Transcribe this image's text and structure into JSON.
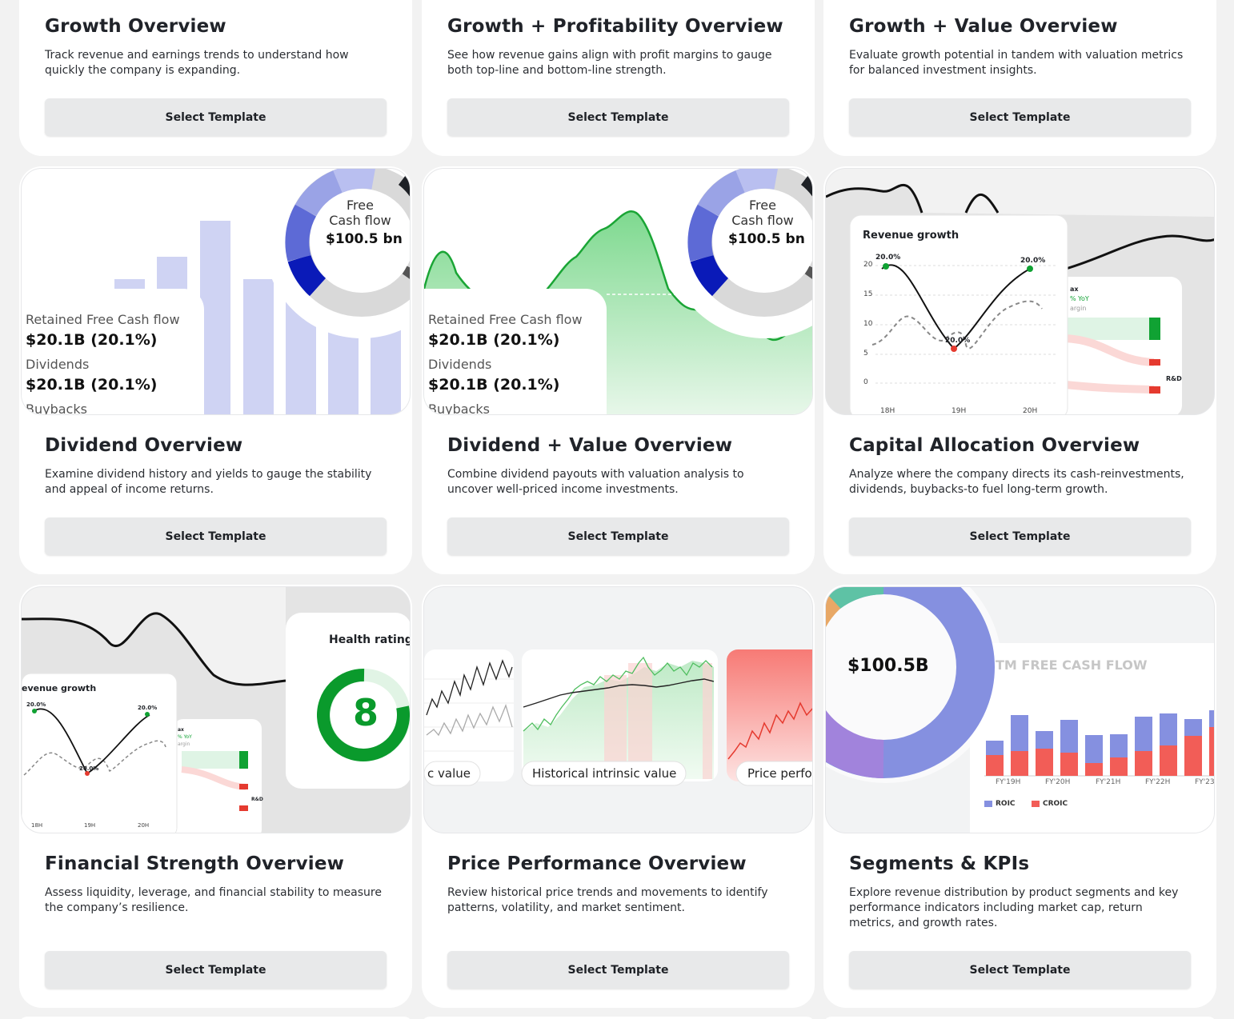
{
  "button_label": "Select Template",
  "cards": [
    {
      "title": "Growth Overview",
      "desc": "Track revenue and earnings trends to understand how quickly the company is expanding."
    },
    {
      "title": "Growth + Profitability Overview",
      "desc": "See how revenue gains align with profit margins to gauge both top-line and bottom-line strength."
    },
    {
      "title": "Growth + Value Overview",
      "desc": "Evaluate growth potential in tandem with valuation metrics for balanced investment insights."
    },
    {
      "title": "Dividend Overview",
      "desc": "Examine dividend history and yields to gauge the stability and appeal of income returns."
    },
    {
      "title": "Dividend + Value Overview",
      "desc": "Combine dividend payouts with valuation analysis to uncover well-priced income investments."
    },
    {
      "title": "Capital Allocation Overview",
      "desc": "Analyze where the company directs its cash-reinvestments, dividends, buybacks-to fuel long-term growth."
    },
    {
      "title": "Financial Strength Overview",
      "desc": "Assess liquidity, leverage, and financial stability to measure the company’s resilience."
    },
    {
      "title": "Price Performance Overview",
      "desc": "Review historical price trends and movements to identify patterns, volatility, and market sentiment."
    },
    {
      "title": "Segments & KPIs",
      "desc": "Explore revenue distribution by product segments and key performance indicators including market cap, return metrics, and growth rates."
    }
  ],
  "thumbs": {
    "fcf": {
      "title_line1": "Free",
      "title_line2": "Cash flow",
      "value": "$100.5 bn"
    },
    "dividend_panel": {
      "retained_label": "Retained Free Cash flow",
      "retained_value": "$20.1B (20.1%)",
      "dividends_label": "Dividends",
      "dividends_value": "$20.1B (20.1%)",
      "buybacks_label": "Buybacks"
    },
    "revenue_growth": {
      "title": "Revenue growth",
      "title_cropped": "evenue growth",
      "peak_label": "20.0%",
      "y_ticks": [
        "20",
        "15",
        "10",
        "5",
        "0"
      ],
      "x_ticks": [
        "18H",
        "19H",
        "20H"
      ],
      "side_labels": [
        "ax",
        "% YoY",
        "argin",
        "R&D"
      ]
    },
    "health": {
      "title": "Health rating",
      "value": "8"
    },
    "price": {
      "label_left": "c value",
      "label_center": "Historical intrinsic value",
      "label_right": "Price perfo"
    },
    "segments": {
      "donut_value": "$100.5B",
      "chart_title": "TM FREE CASH FLOW",
      "x_ticks": [
        "FY'19H",
        "FY'20H",
        "FY'21H",
        "FY'22H",
        "FY'23"
      ],
      "legend": [
        "ROIC",
        "CROIC"
      ]
    }
  },
  "colors": {
    "accent_green": "#109a34",
    "bar_purple": "#8590e0",
    "bar_red": "#f25d57",
    "button_bg": "#e8e9ea"
  }
}
